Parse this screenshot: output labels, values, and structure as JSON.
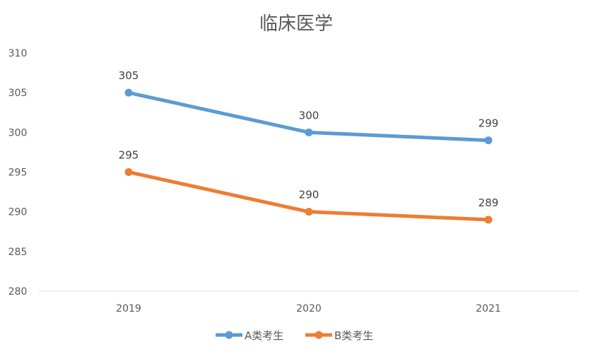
{
  "chart_data": {
    "type": "line",
    "title": "临床医学",
    "categories": [
      "2019",
      "2020",
      "2021"
    ],
    "series": [
      {
        "name": "A类考生",
        "values": [
          305,
          300,
          299
        ],
        "color": "#5B9BD5"
      },
      {
        "name": "B类考生",
        "values": [
          295,
          290,
          289
        ],
        "color": "#ED7D31"
      }
    ],
    "ylim": [
      280,
      310
    ],
    "yticks": [
      280,
      285,
      290,
      295,
      300,
      305,
      310
    ],
    "grid": false,
    "legend": "bottom",
    "data_labels": true
  }
}
